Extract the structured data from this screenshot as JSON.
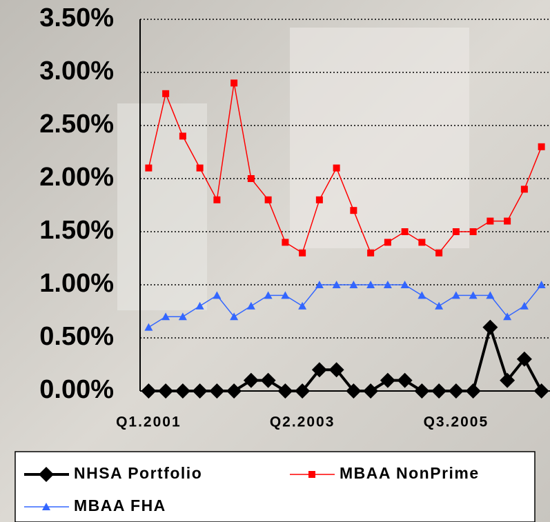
{
  "chart_data": {
    "type": "line",
    "categories": [
      "Q1.2001",
      null,
      null,
      null,
      null,
      null,
      null,
      null,
      null,
      "Q2.2003",
      null,
      null,
      null,
      null,
      null,
      null,
      null,
      null,
      "Q3.2005",
      null,
      null,
      null,
      null,
      null
    ],
    "series": [
      {
        "name": "NHSA Portfolio",
        "color": "#000000",
        "marker": "diamond",
        "line_width": 4,
        "values": [
          0,
          0,
          0,
          0,
          0,
          0,
          0.1,
          0.1,
          0,
          0,
          0.2,
          0.2,
          0,
          0,
          0.1,
          0.1,
          0,
          0,
          0,
          0,
          0.6,
          0.1,
          0.3,
          0
        ]
      },
      {
        "name": "MBAA NonPrime",
        "color": "#ff0000",
        "marker": "square",
        "line_width": 1.5,
        "values": [
          2.1,
          2.8,
          2.4,
          2.1,
          1.8,
          2.9,
          2.0,
          1.8,
          1.4,
          1.3,
          1.8,
          2.1,
          1.7,
          1.3,
          1.4,
          1.5,
          1.4,
          1.3,
          1.5,
          1.5,
          1.6,
          1.6,
          1.9,
          2.3
        ]
      },
      {
        "name": "MBAA FHA",
        "color": "#3366ff",
        "marker": "triangle",
        "line_width": 1.5,
        "values": [
          0.6,
          0.7,
          0.7,
          0.8,
          0.9,
          0.7,
          0.8,
          0.9,
          0.9,
          0.8,
          1.0,
          1.0,
          1.0,
          1.0,
          1.0,
          1.0,
          0.9,
          0.8,
          0.9,
          0.9,
          0.9,
          0.7,
          0.8,
          1.0
        ]
      }
    ],
    "ylim": [
      0,
      3.5
    ],
    "yticks": [
      {
        "value": 0,
        "label": "0.00%"
      },
      {
        "value": 0.5,
        "label": "0.50%"
      },
      {
        "value": 1,
        "label": "1.00%"
      },
      {
        "value": 1.5,
        "label": "1.50%"
      },
      {
        "value": 2,
        "label": "2.00%"
      },
      {
        "value": 2.5,
        "label": "2.50%"
      },
      {
        "value": 3,
        "label": "3.00%"
      },
      {
        "value": 3.5,
        "label": "3.50%"
      }
    ],
    "grid": true,
    "legend": "bottom"
  }
}
